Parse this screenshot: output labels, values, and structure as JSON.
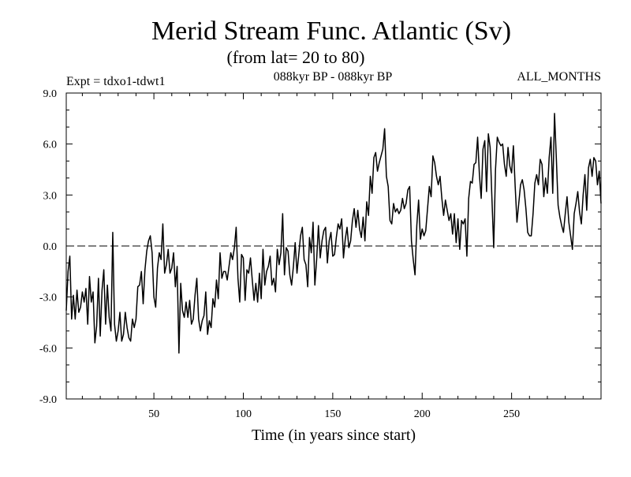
{
  "chart_data": {
    "type": "line",
    "title": "Merid Stream Func. Atlantic (Sv)",
    "subtitle": "(from lat= 20 to 80)",
    "experiment_label": "Expt = tdxo1-tdwt1",
    "period_label": "088kyr BP - 088kyr BP",
    "months_label": "ALL_MONTHS",
    "xlabel": "Time (in years since start)",
    "ylabel": "",
    "xlim": [
      1,
      300
    ],
    "ylim": [
      -9,
      9
    ],
    "x_ticks": [
      50,
      100,
      150,
      200,
      250
    ],
    "y_ticks": [
      -9,
      -6,
      -3,
      0,
      3,
      6,
      9
    ],
    "y_tick_labels": [
      "-9.0",
      "-6.0",
      "-3.0",
      "0.0",
      "3.0",
      "6.0",
      "9.0"
    ],
    "reference_line": 0,
    "grid": false,
    "series": [
      {
        "name": "Merid Stream Func. Atlantic",
        "x": [
          1,
          2,
          3,
          4,
          5,
          6,
          7,
          8,
          9,
          10,
          11,
          12,
          13,
          14,
          15,
          16,
          17,
          18,
          19,
          20,
          21,
          22,
          23,
          24,
          25,
          26,
          27,
          28,
          29,
          30,
          31,
          32,
          33,
          34,
          35,
          36,
          37,
          38,
          39,
          40,
          41,
          42,
          43,
          44,
          45,
          46,
          47,
          48,
          49,
          50,
          51,
          52,
          53,
          54,
          55,
          56,
          57,
          58,
          59,
          60,
          61,
          62,
          63,
          64,
          65,
          66,
          67,
          68,
          69,
          70,
          71,
          72,
          73,
          74,
          75,
          76,
          77,
          78,
          79,
          80,
          81,
          82,
          83,
          84,
          85,
          86,
          87,
          88,
          89,
          90,
          91,
          92,
          93,
          94,
          95,
          96,
          97,
          98,
          99,
          100,
          101,
          102,
          103,
          104,
          105,
          106,
          107,
          108,
          109,
          110,
          111,
          112,
          113,
          114,
          115,
          116,
          117,
          118,
          119,
          120,
          121,
          122,
          123,
          124,
          125,
          126,
          127,
          128,
          129,
          130,
          131,
          132,
          133,
          134,
          135,
          136,
          137,
          138,
          139,
          140,
          141,
          142,
          143,
          144,
          145,
          146,
          147,
          148,
          149,
          150,
          151,
          152,
          153,
          154,
          155,
          156,
          157,
          158,
          159,
          160,
          161,
          162,
          163,
          164,
          165,
          166,
          167,
          168,
          169,
          170,
          171,
          172,
          173,
          174,
          175,
          176,
          177,
          178,
          179,
          180,
          181,
          182,
          183,
          184,
          185,
          186,
          187,
          188,
          189,
          190,
          191,
          192,
          193,
          194,
          195,
          196,
          197,
          198,
          199,
          200,
          201,
          202,
          203,
          204,
          205,
          206,
          207,
          208,
          209,
          210,
          211,
          212,
          213,
          214,
          215,
          216,
          217,
          218,
          219,
          220,
          221,
          222,
          223,
          224,
          225,
          226,
          227,
          228,
          229,
          230,
          231,
          232,
          233,
          234,
          235,
          236,
          237,
          238,
          239,
          240,
          241,
          242,
          243,
          244,
          245,
          246,
          247,
          248,
          249,
          250,
          251,
          252,
          253,
          254,
          255,
          256,
          257,
          258,
          259,
          260,
          261,
          262,
          263,
          264,
          265,
          266,
          267,
          268,
          269,
          270,
          271,
          272,
          273,
          274,
          275,
          276,
          277,
          278,
          279,
          280,
          281,
          282,
          283,
          284,
          285,
          286,
          287,
          288,
          289,
          290,
          291,
          292,
          293,
          294,
          295,
          296,
          297,
          298,
          299,
          300
        ],
        "y": [
          -3.8,
          -1.5,
          -0.6,
          -4.3,
          -2.9,
          -4.3,
          -2.6,
          -3.9,
          -3.6,
          -2.7,
          -3.3,
          -2.5,
          -4.6,
          -1.8,
          -3.3,
          -2.7,
          -5.7,
          -4.7,
          -1.9,
          -5.3,
          -2.6,
          -1.4,
          -4.6,
          -2.3,
          -4.2,
          -5.0,
          0.8,
          -4.6,
          -5.6,
          -5.0,
          -3.9,
          -5.6,
          -5.2,
          -3.9,
          -4.8,
          -5.4,
          -5.6,
          -4.3,
          -4.8,
          -4.3,
          -2.4,
          -2.3,
          -1.5,
          -3.4,
          -1.4,
          -0.3,
          0.3,
          0.6,
          -0.4,
          -3.0,
          -3.6,
          -1.3,
          -0.4,
          -0.8,
          1.3,
          -1.6,
          -1.1,
          -0.2,
          -1.6,
          -1.3,
          -0.4,
          -2.4,
          -1.2,
          -6.3,
          -2.2,
          -3.8,
          -4.2,
          -3.3,
          -4.2,
          -3.2,
          -4.6,
          -4.3,
          -2.9,
          -1.9,
          -4.3,
          -5.0,
          -4.4,
          -4.1,
          -2.7,
          -5.2,
          -4.4,
          -4.8,
          -3.1,
          -3.6,
          -2.0,
          -3.1,
          -0.4,
          -1.9,
          -1.5,
          -1.5,
          -2.0,
          -1.2,
          -0.4,
          -0.8,
          -0.1,
          1.1,
          -1.9,
          -3.3,
          -0.5,
          -0.7,
          -3.2,
          -1.4,
          -1.6,
          -0.7,
          -2.0,
          -3.2,
          -2.2,
          -3.3,
          -1.6,
          -3.1,
          -0.2,
          -2.3,
          -1.5,
          -1.2,
          -0.6,
          -2.3,
          -1.9,
          -2.7,
          -0.2,
          -1.1,
          -0.4,
          1.9,
          -1.7,
          -0.1,
          -0.3,
          -1.7,
          -2.3,
          -1.2,
          0.2,
          -1.6,
          -0.5,
          0.6,
          1.1,
          -0.8,
          -1.1,
          -2.4,
          0.5,
          -0.4,
          1.4,
          -2.3,
          -0.8,
          1.2,
          -0.7,
          0.3,
          0.9,
          1.1,
          -1.0,
          0.3,
          0.8,
          -0.6,
          -0.5,
          0.5,
          1.3,
          1.0,
          1.6,
          -0.7,
          0.4,
          1.1,
          -0.1,
          0.3,
          1.5,
          2.2,
          1.1,
          2.1,
          1.0,
          0.5,
          1.7,
          0.3,
          2.6,
          1.8,
          4.1,
          3.1,
          5.2,
          5.5,
          4.4,
          4.9,
          5.3,
          5.7,
          6.9,
          4.1,
          3.5,
          1.5,
          1.3,
          2.5,
          2.0,
          2.2,
          1.9,
          2.1,
          2.8,
          2.2,
          2.5,
          3.3,
          3.5,
          0.3,
          -0.8,
          -1.7,
          1.2,
          2.7,
          0.4,
          1.0,
          0.6,
          0.9,
          2.2,
          3.5,
          2.9,
          5.3,
          4.9,
          4.1,
          3.6,
          4.1,
          2.8,
          1.8,
          2.7,
          2.1,
          1.5,
          1.9,
          0.7,
          1.9,
          0.2,
          1.6,
          -0.2,
          1.5,
          1.3,
          1.6,
          -0.6,
          2.8,
          3.8,
          3.7,
          4.8,
          4.9,
          6.4,
          4.2,
          2.8,
          5.7,
          6.2,
          3.2,
          6.6,
          5.8,
          2.8,
          -0.1,
          4.5,
          6.4,
          6.1,
          5.9,
          6.0,
          4.8,
          4.1,
          5.8,
          4.7,
          4.3,
          5.9,
          3.5,
          1.4,
          2.5,
          3.6,
          3.9,
          3.3,
          2.2,
          0.8,
          0.6,
          0.6,
          1.9,
          3.7,
          4.2,
          3.6,
          5.1,
          4.8,
          2.9,
          4.0,
          3.1,
          5.2,
          6.4,
          3.1,
          7.8,
          5.2,
          2.4,
          1.7,
          1.2,
          0.8,
          1.9,
          2.9,
          1.4,
          0.6,
          -0.2,
          1.9,
          2.5,
          3.2,
          2.0,
          1.3,
          3.0,
          4.2,
          2.1,
          4.6,
          5.1,
          4.1,
          5.2,
          5.0,
          3.6,
          4.4,
          2.5
        ]
      }
    ]
  }
}
